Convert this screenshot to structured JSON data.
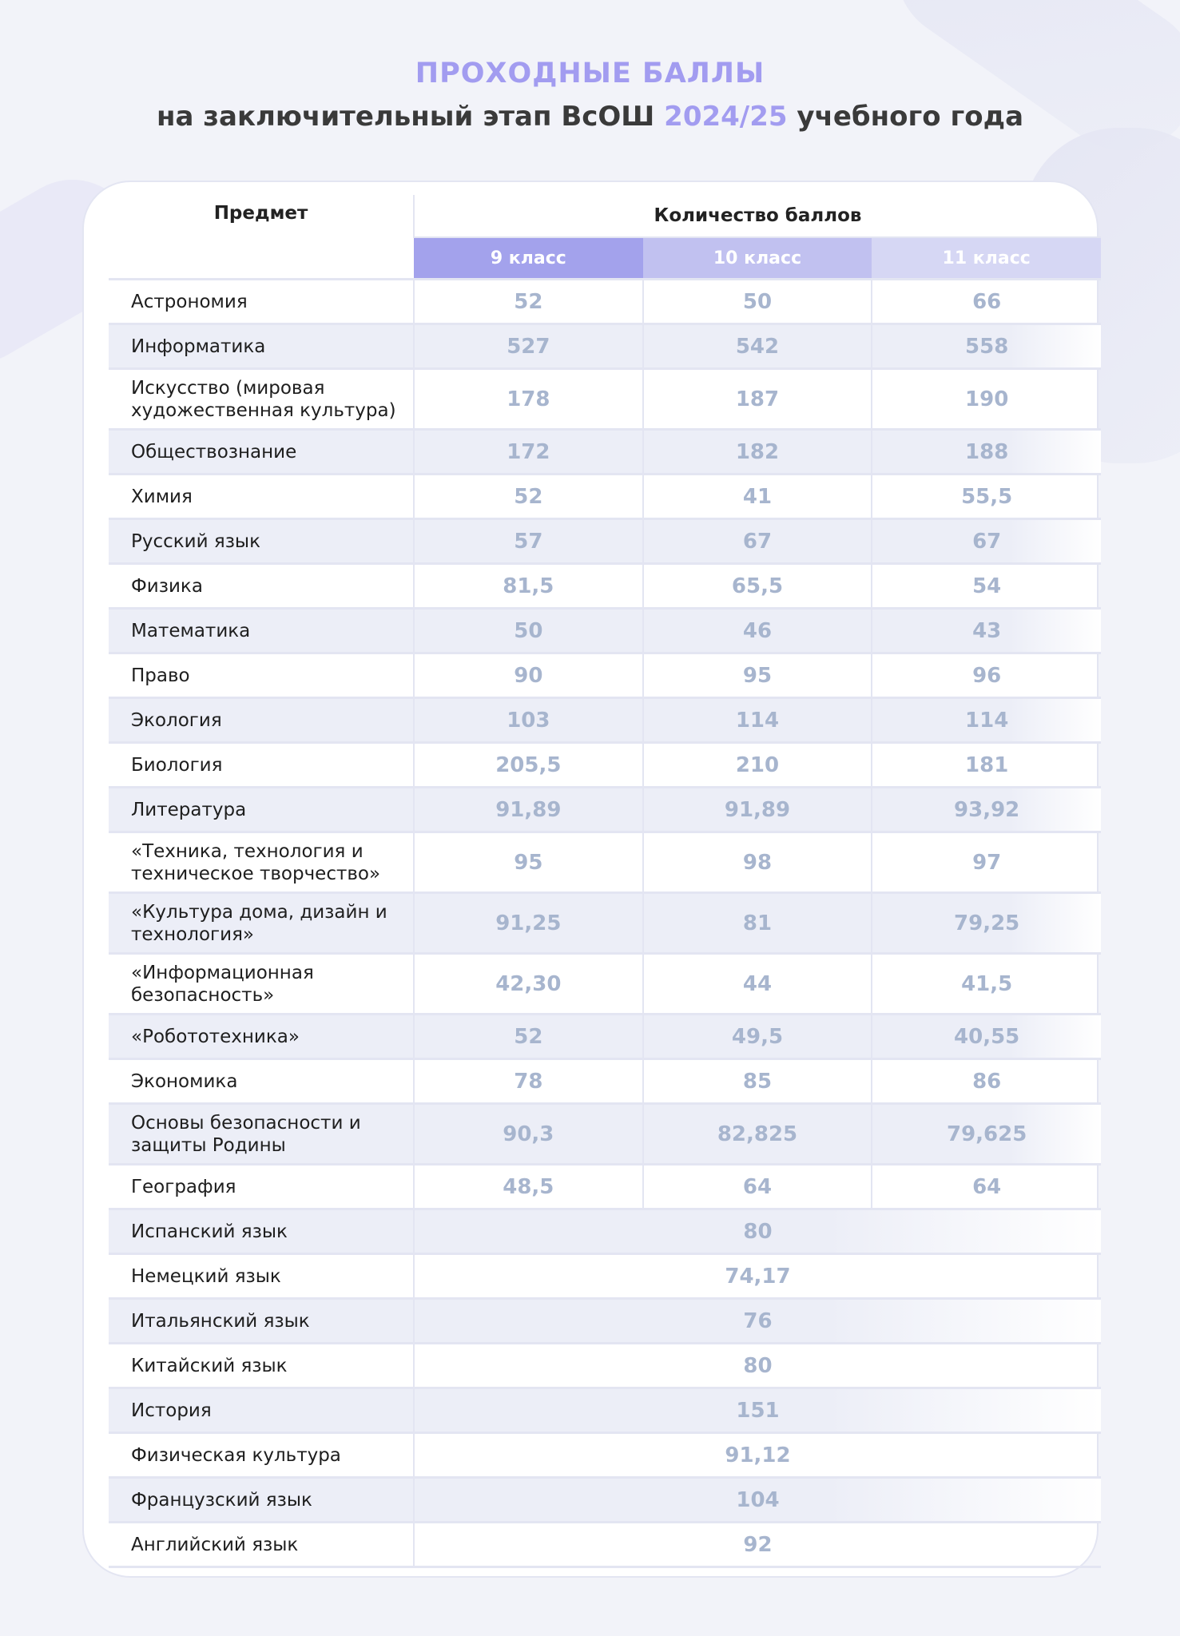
{
  "title": {
    "line1": "ПРОХОДНЫЕ БАЛЛЫ",
    "line2_pre": "на заключительный этап ВсОШ ",
    "year": "2024/25",
    "line2_post": " учебного года"
  },
  "table": {
    "subject_header": "Предмет",
    "score_header": "Количество баллов",
    "grades": [
      "9 класс",
      "10 класс",
      "11 класс"
    ],
    "rows": [
      {
        "subject": "Астрономия",
        "values": [
          "52",
          "50",
          "66"
        ]
      },
      {
        "subject": "Информатика",
        "values": [
          "527",
          "542",
          "558"
        ]
      },
      {
        "subject": "Искусство (мировая художественная культура)",
        "values": [
          "178",
          "187",
          "190"
        ]
      },
      {
        "subject": "Обществознание",
        "values": [
          "172",
          "182",
          "188"
        ]
      },
      {
        "subject": "Химия",
        "values": [
          "52",
          "41",
          "55,5"
        ]
      },
      {
        "subject": "Русский язык",
        "values": [
          "57",
          "67",
          "67"
        ]
      },
      {
        "subject": "Физика",
        "values": [
          "81,5",
          "65,5",
          "54"
        ]
      },
      {
        "subject": "Математика",
        "values": [
          "50",
          "46",
          "43"
        ]
      },
      {
        "subject": "Право",
        "values": [
          "90",
          "95",
          "96"
        ]
      },
      {
        "subject": "Экология",
        "values": [
          "103",
          "114",
          "114"
        ]
      },
      {
        "subject": "Биология",
        "values": [
          "205,5",
          "210",
          "181"
        ]
      },
      {
        "subject": "Литература",
        "values": [
          "91,89",
          "91,89",
          "93,92"
        ]
      },
      {
        "subject": "«Техника, технология и техническое творчество»",
        "values": [
          "95",
          "98",
          "97"
        ]
      },
      {
        "subject": "«Культура дома, дизайн и технология»",
        "values": [
          "91,25",
          "81",
          "79,25"
        ]
      },
      {
        "subject": "«Информационная безопасность»",
        "values": [
          "42,30",
          "44",
          "41,5"
        ]
      },
      {
        "subject": "«Робототехника»",
        "values": [
          "52",
          "49,5",
          "40,55"
        ]
      },
      {
        "subject": "Экономика",
        "values": [
          "78",
          "85",
          "86"
        ]
      },
      {
        "subject": "Основы безопасности и защиты Родины",
        "values": [
          "90,3",
          "82,825",
          "79,625"
        ]
      },
      {
        "subject": "География",
        "values": [
          "48,5",
          "64",
          "64"
        ]
      },
      {
        "subject": "Испанский язык",
        "all": "80"
      },
      {
        "subject": "Немецкий язык",
        "all": "74,17"
      },
      {
        "subject": "Итальянский язык",
        "all": "76"
      },
      {
        "subject": "Китайский язык",
        "all": "80"
      },
      {
        "subject": "История",
        "all": "151"
      },
      {
        "subject": "Физическая культура",
        "all": "91,12"
      },
      {
        "subject": "Французский язык",
        "all": "104"
      },
      {
        "subject": "Английский язык",
        "all": "92"
      }
    ]
  }
}
